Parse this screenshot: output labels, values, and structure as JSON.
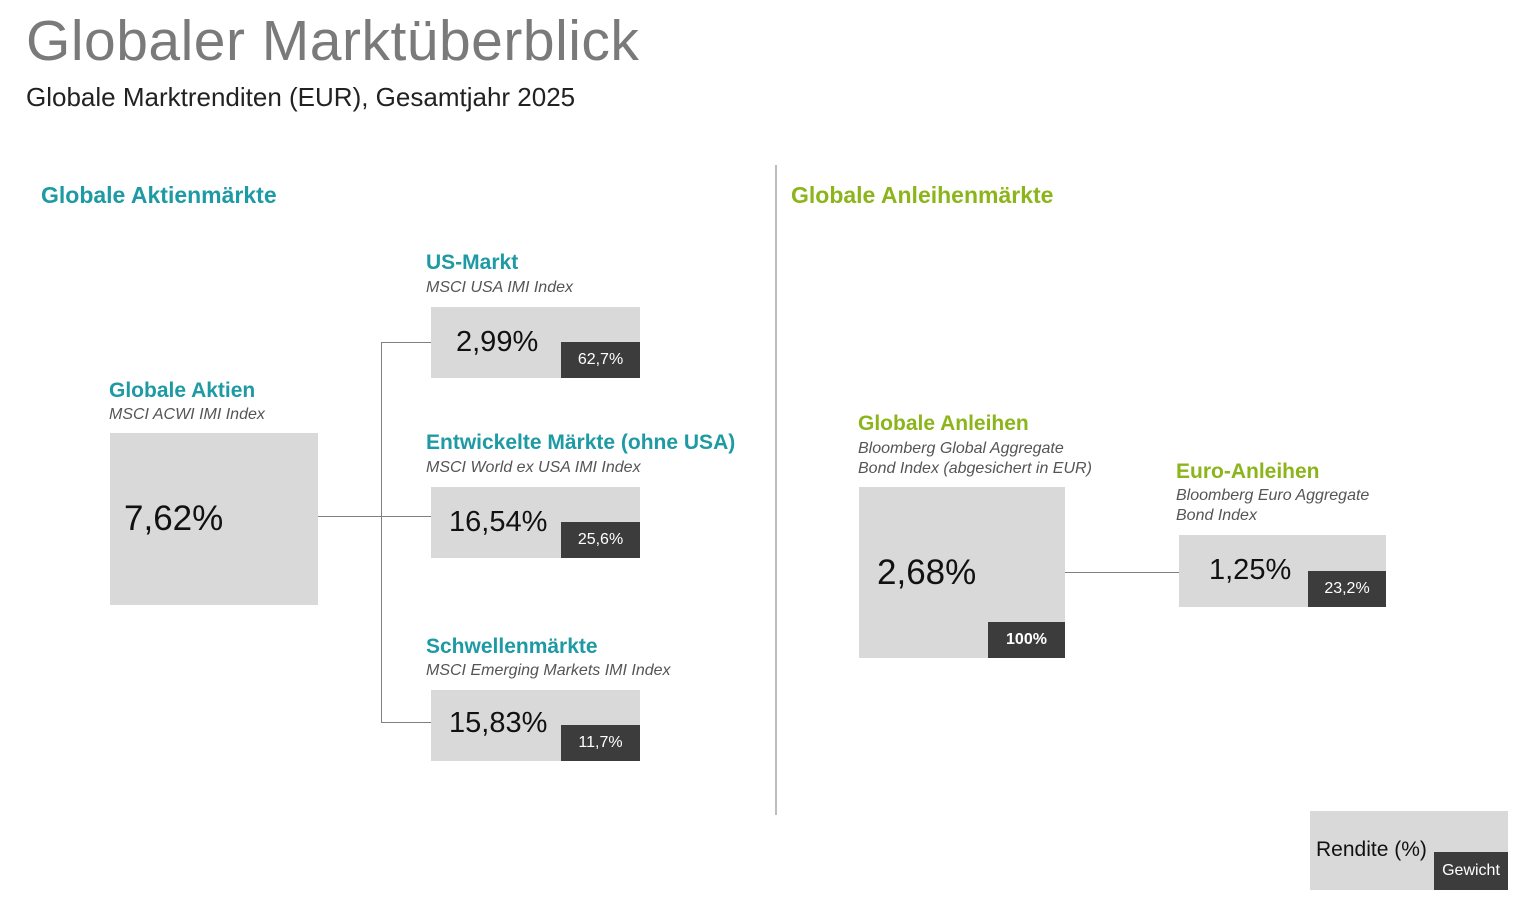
{
  "header": {
    "title": "Globaler Marktüberblick",
    "subtitle": "Globale Marktrenditen (EUR), Gesamtjahr 2025"
  },
  "colors": {
    "equity_accent": "#1e9aa4",
    "bond_accent": "#8cb51c",
    "box_fill": "#d9d9d9",
    "weight_fill": "#3c3c3c"
  },
  "equities": {
    "heading": "Globale Aktienmärkte",
    "parent": {
      "title": "Globale Aktien",
      "index": "MSCI ACWI IMI Index",
      "return": "7,62%"
    },
    "children": [
      {
        "title": "US-Markt",
        "index": "MSCI USA IMI Index",
        "return": "2,99%",
        "weight": "62,7%"
      },
      {
        "title": "Entwickelte Märkte (ohne USA)",
        "index": "MSCI World ex USA IMI Index",
        "return": "16,54%",
        "weight": "25,6%"
      },
      {
        "title": "Schwellenmärkte",
        "index": "MSCI Emerging Markets IMI Index",
        "return": "15,83%",
        "weight": "11,7%"
      }
    ]
  },
  "bonds": {
    "heading": "Globale Anleihenmärkte",
    "parent": {
      "title": "Globale Anleihen",
      "index_line1": "Bloomberg Global Aggregate",
      "index_line2": "Bond Index (abgesichert in EUR)",
      "return": "2,68%",
      "weight": "100%"
    },
    "children": [
      {
        "title": "Euro-Anleihen",
        "index_line1": "Bloomberg Euro Aggregate",
        "index_line2": "Bond Index",
        "return": "1,25%",
        "weight": "23,2%"
      }
    ]
  },
  "legend": {
    "return_label": "Rendite (%)",
    "weight_label": "Gewicht"
  }
}
